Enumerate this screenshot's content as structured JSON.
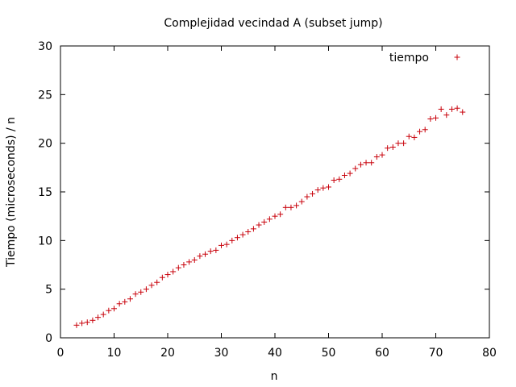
{
  "chart_data": {
    "type": "scatter",
    "title": "Complejidad vecindad A (subset jump)",
    "xlabel": "n",
    "ylabel": "Tiempo (microseconds) / n",
    "xlim": [
      0,
      80
    ],
    "ylim": [
      0,
      30
    ],
    "xticks": [
      0,
      10,
      20,
      30,
      40,
      50,
      60,
      70,
      80
    ],
    "yticks": [
      0,
      5,
      10,
      15,
      20,
      25,
      30
    ],
    "grid": false,
    "legend_position": "top-right",
    "marker": "plus",
    "series": [
      {
        "name": "tiempo",
        "color": "#c8000a",
        "x": [
          3,
          4,
          5,
          6,
          7,
          8,
          9,
          10,
          11,
          12,
          13,
          14,
          15,
          16,
          17,
          18,
          19,
          20,
          21,
          22,
          23,
          24,
          25,
          26,
          27,
          28,
          29,
          30,
          31,
          32,
          33,
          34,
          35,
          36,
          37,
          38,
          39,
          40,
          41,
          42,
          43,
          44,
          45,
          46,
          47,
          48,
          49,
          50,
          51,
          52,
          53,
          54,
          55,
          56,
          57,
          58,
          59,
          60,
          61,
          62,
          63,
          64,
          65,
          66,
          67,
          68,
          69,
          70,
          71,
          72,
          73,
          74,
          75
        ],
        "y": [
          1.3,
          1.5,
          1.6,
          1.8,
          2.1,
          2.4,
          2.8,
          3.0,
          3.5,
          3.7,
          4.0,
          4.5,
          4.7,
          5.0,
          5.4,
          5.7,
          6.2,
          6.5,
          6.8,
          7.2,
          7.5,
          7.8,
          8.0,
          8.4,
          8.6,
          8.9,
          9.0,
          9.5,
          9.6,
          10.0,
          10.3,
          10.6,
          10.9,
          11.2,
          11.6,
          11.9,
          12.2,
          12.5,
          12.7,
          13.4,
          13.4,
          13.6,
          14.0,
          14.5,
          14.8,
          15.2,
          15.4,
          15.5,
          16.2,
          16.3,
          16.7,
          16.9,
          17.4,
          17.8,
          18.0,
          18.0,
          18.6,
          18.8,
          19.5,
          19.6,
          20.0,
          20.0,
          20.7,
          20.6,
          21.2,
          21.4,
          22.5,
          22.6,
          23.5,
          22.9,
          23.5,
          23.6,
          23.2
        ]
      }
    ]
  }
}
